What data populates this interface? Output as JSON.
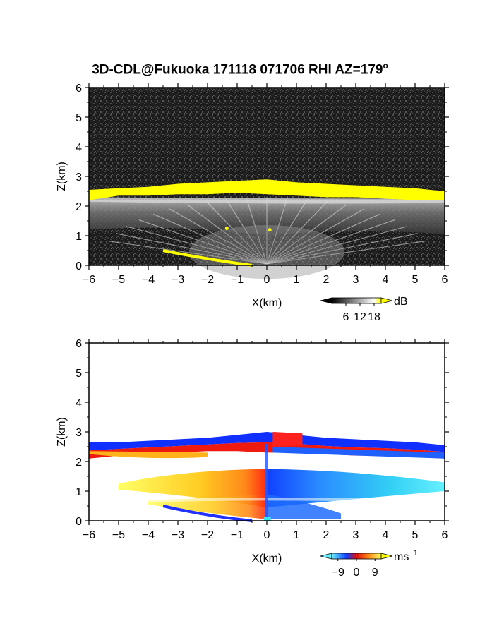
{
  "title": "3D-CDL@Fukuoka 171118 071706 RHI AZ=179",
  "title_superscript": "o",
  "chart_data": [
    {
      "type": "heatmap",
      "panel": "top",
      "quantity": "backscatter intensity",
      "xlabel": "X(km)",
      "ylabel": "Z(km)",
      "xlim": [
        -6,
        6
      ],
      "ylim": [
        0,
        6
      ],
      "xticks": [
        -6,
        -5,
        -4,
        -3,
        -2,
        -1,
        0,
        1,
        2,
        3,
        4,
        5,
        6
      ],
      "yticks": [
        0,
        1,
        2,
        3,
        4,
        5,
        6
      ],
      "colorbar": {
        "unit": "dB",
        "ticks": [
          6,
          12,
          18
        ],
        "range": [
          0,
          21
        ],
        "scheme": "grayscale-to-yellow"
      },
      "layers": [
        {
          "kind": "saturated_layer",
          "z_bottom": [
            2.2,
            2.35,
            2.35,
            2.4,
            2.4,
            2.45,
            2.4,
            2.35,
            2.3,
            2.3,
            2.25,
            2.2,
            2.2
          ],
          "z_top": [
            2.55,
            2.6,
            2.65,
            2.75,
            2.8,
            2.85,
            2.9,
            2.8,
            2.75,
            2.7,
            2.65,
            2.6,
            2.5
          ]
        },
        {
          "kind": "gray_band",
          "x": [
            -6,
            6
          ],
          "z": [
            0.9,
            2.2
          ]
        },
        {
          "kind": "ground_echo",
          "x": [
            -3.5,
            -0.5
          ],
          "z": [
            0.5,
            0.0
          ]
        }
      ]
    },
    {
      "type": "heatmap",
      "panel": "bottom",
      "quantity": "radial velocity",
      "xlabel": "X(km)",
      "ylabel": "Z(km)",
      "xlim": [
        -6,
        6
      ],
      "ylim": [
        0,
        6
      ],
      "xticks": [
        -6,
        -5,
        -4,
        -3,
        -2,
        -1,
        0,
        1,
        2,
        3,
        4,
        5,
        6
      ],
      "yticks": [
        0,
        1,
        2,
        3,
        4,
        5,
        6
      ],
      "colorbar": {
        "unit": "ms",
        "unit_exponent": "−1",
        "ticks": [
          -9,
          0,
          9
        ],
        "range": [
          -12,
          12
        ],
        "scheme": "cyan-blue-red-yellow"
      },
      "layers": [
        {
          "kind": "velocity_layer",
          "z_bottom": [
            2.1,
            2.2,
            2.25,
            2.3,
            2.35,
            2.35,
            2.3,
            2.3,
            2.25,
            2.2,
            2.2,
            2.15,
            2.1
          ],
          "z_top": [
            2.65,
            2.65,
            2.7,
            2.75,
            2.8,
            2.9,
            3.0,
            2.9,
            2.8,
            2.75,
            2.7,
            2.65,
            2.55
          ]
        },
        {
          "kind": "velocity_band",
          "x": [
            -5,
            6
          ],
          "z": [
            0.7,
            1.7
          ]
        },
        {
          "kind": "velocity_band_low",
          "x": [
            -4,
            2.5
          ],
          "z": [
            0.05,
            0.7
          ]
        }
      ]
    }
  ]
}
